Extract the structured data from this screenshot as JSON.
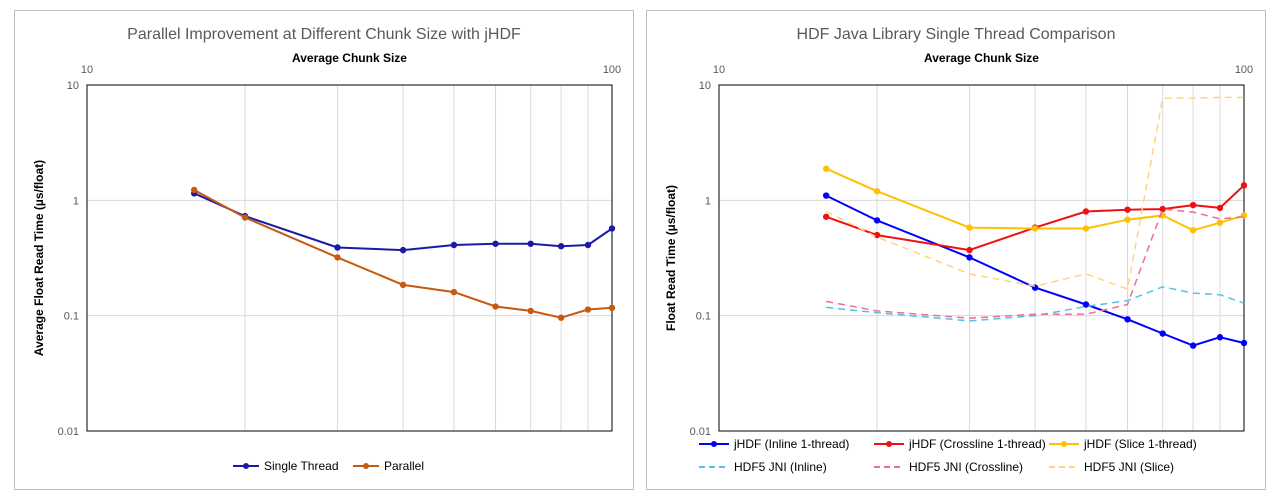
{
  "chart_data": [
    {
      "type": "line",
      "title": "Parallel Improvement at Different Chunk Size with jHDF",
      "xlabel": "Average Chunk Size",
      "ylabel": "Average Float Read Time (µs/float)",
      "x_scale": "log",
      "y_scale": "log",
      "xlim": [
        10,
        100
      ],
      "ylim": [
        0.01,
        10
      ],
      "x_ticks": [
        "10",
        "100"
      ],
      "y_ticks": [
        "10",
        "1",
        "0.1",
        "0.01"
      ],
      "x_gridlines": [
        20,
        30,
        40,
        50,
        60,
        70,
        80,
        90
      ],
      "grid": true,
      "legend_position": "bottom",
      "series": [
        {
          "name": "Single Thread",
          "color": "#1a1aa6",
          "dash": false,
          "x": [
            16.0,
            20.0,
            30.0,
            40.0,
            50.0,
            60.0,
            70.0,
            80.0,
            90.0,
            100.0
          ],
          "y": [
            1.15,
            0.73,
            0.39,
            0.37,
            0.41,
            0.42,
            0.42,
            0.4,
            0.41,
            0.57
          ]
        },
        {
          "name": "Parallel",
          "color": "#c55a11",
          "dash": false,
          "x": [
            16.0,
            20.0,
            30.0,
            40.0,
            50.0,
            60.0,
            70.0,
            80.0,
            90.0,
            100.0
          ],
          "y": [
            1.23,
            0.71,
            0.32,
            0.185,
            0.16,
            0.12,
            0.11,
            0.096,
            0.113,
            0.117
          ]
        }
      ]
    },
    {
      "type": "line",
      "title": "HDF Java Library Single Thread Comparison",
      "xlabel": "Average Chunk Size",
      "ylabel": "Float Read Time (µs/float)",
      "x_scale": "log",
      "y_scale": "log",
      "xlim": [
        10,
        100
      ],
      "ylim": [
        0.01,
        10
      ],
      "x_ticks": [
        "10",
        "100"
      ],
      "y_ticks": [
        "10",
        "1",
        "0.1",
        "0.01"
      ],
      "x_gridlines": [
        20,
        30,
        40,
        50,
        60,
        70,
        80,
        90
      ],
      "grid": true,
      "legend_position": "bottom",
      "series": [
        {
          "name": "jHDF (Inline 1-thread)",
          "color": "#0000ff",
          "dash": false,
          "x": [
            16.0,
            20.0,
            30.0,
            40.0,
            50.0,
            60.0,
            70.0,
            80.0,
            90.0,
            100.0
          ],
          "y": [
            1.1,
            0.67,
            0.32,
            0.175,
            0.125,
            0.093,
            0.07,
            0.055,
            0.065,
            0.058
          ]
        },
        {
          "name": "jHDF (Crossline 1-thread)",
          "color": "#ee1111",
          "dash": false,
          "x": [
            16.0,
            20.0,
            30.0,
            40.0,
            50.0,
            60.0,
            70.0,
            80.0,
            90.0,
            100.0
          ],
          "y": [
            0.72,
            0.5,
            0.37,
            0.58,
            0.8,
            0.83,
            0.84,
            0.91,
            0.86,
            1.35
          ]
        },
        {
          "name": "jHDF (Slice 1-thread)",
          "color": "#ffc000",
          "dash": false,
          "x": [
            16.0,
            20.0,
            30.0,
            40.0,
            50.0,
            60.0,
            70.0,
            80.0,
            90.0,
            100.0
          ],
          "y": [
            1.88,
            1.2,
            0.58,
            0.57,
            0.57,
            0.68,
            0.74,
            0.55,
            0.64,
            0.74
          ]
        },
        {
          "name": "HDF5 JNI (Inline)",
          "color": "#4fc3e8",
          "dash": true,
          "x": [
            16.0,
            20.0,
            30.0,
            40.0,
            50.0,
            60.0,
            70.0,
            80.0,
            90.0,
            100.0
          ],
          "y": [
            0.118,
            0.106,
            0.09,
            0.1,
            0.12,
            0.135,
            0.178,
            0.157,
            0.152,
            0.128
          ]
        },
        {
          "name": "HDF5 JNI (Crossline)",
          "color": "#f06b9a",
          "dash": true,
          "x": [
            16.0,
            20.0,
            30.0,
            40.0,
            50.0,
            60.0,
            70.0,
            80.0,
            90.0,
            100.0
          ],
          "y": [
            0.133,
            0.11,
            0.095,
            0.103,
            0.103,
            0.125,
            0.84,
            0.79,
            0.69,
            0.72
          ]
        },
        {
          "name": "HDF5 JNI (Slice)",
          "color": "#ffd480",
          "dash": true,
          "x": [
            16.0,
            20.0,
            30.0,
            40.0,
            50.0,
            60.0,
            70.0,
            80.0,
            90.0,
            100.0
          ],
          "y": [
            0.8,
            0.48,
            0.23,
            0.18,
            0.23,
            0.17,
            7.7,
            7.7,
            7.8,
            7.8
          ]
        }
      ]
    }
  ]
}
